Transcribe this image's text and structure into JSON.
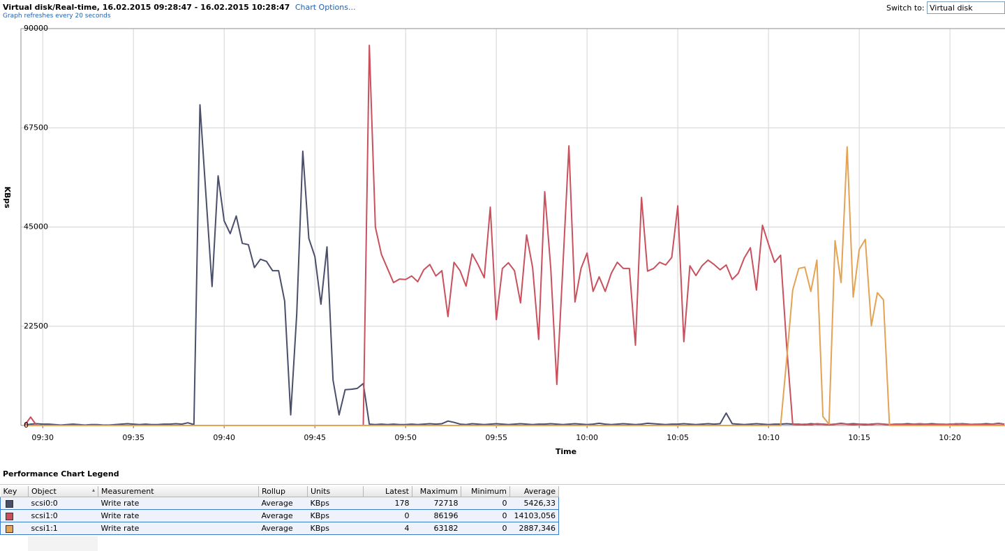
{
  "header": {
    "chart_options": "Chart Options...",
    "switch_label": "Switch to:",
    "switch_value": "Virtual disk"
  },
  "chart_data": {
    "type": "line",
    "title": "Virtual disk/Real-time, 16.02.2015 09:28:47 - 16.02.2015 10:28:47",
    "subtitle": "Graph refreshes every 20 seconds",
    "x_label": "Time",
    "y_label": "KBps",
    "x": [
      1740,
      1760,
      1780,
      1800,
      1820,
      1840,
      1860,
      1880,
      1900,
      1920,
      1940,
      1960,
      1980,
      2000,
      2020,
      2040,
      2060,
      2080,
      2100,
      2120,
      2140,
      2160,
      2180,
      2200,
      2220,
      2240,
      2260,
      2280,
      2300,
      2320,
      2340,
      2360,
      2380,
      2400,
      2420,
      2440,
      2460,
      2480,
      2500,
      2520,
      2540,
      2560,
      2580,
      2600,
      2620,
      2640,
      2660,
      2680,
      2700,
      2720,
      2740,
      2760,
      2780,
      2800,
      2820,
      2840,
      2860,
      2880,
      2900,
      2920,
      2940,
      2960,
      2980,
      3000,
      3020,
      3040,
      3060,
      3080,
      3100,
      3120,
      3140,
      3160,
      3180,
      3200,
      3220,
      3240,
      3260,
      3280,
      3300,
      3320,
      3340,
      3360,
      3380,
      3400,
      3420,
      3440,
      3460,
      3480,
      3500,
      3520,
      3540,
      3560,
      3580,
      3600,
      3620,
      3640,
      3660,
      3680,
      3700,
      3720,
      3740,
      3760,
      3780,
      3800,
      3820,
      3840,
      3860,
      3880,
      3900,
      3920,
      3940,
      3960,
      3980,
      4000,
      4020,
      4040,
      4060,
      4080,
      4100,
      4120,
      4140,
      4160,
      4180,
      4200,
      4220,
      4240,
      4260,
      4280,
      4300,
      4320,
      4340,
      4360,
      4380,
      4400,
      4420,
      4440,
      4460,
      4480,
      4500,
      4520,
      4540,
      4560,
      4580,
      4600,
      4620,
      4640,
      4660,
      4680,
      4700,
      4720,
      4740,
      4760,
      4780,
      4800,
      4820,
      4840,
      4860,
      4880,
      4900,
      4920,
      4940,
      4960,
      4980
    ],
    "xlim": [
      1728,
      4982
    ],
    "xticks": [
      {
        "value": 1800,
        "label": "09:30"
      },
      {
        "value": 2100,
        "label": "09:35"
      },
      {
        "value": 2400,
        "label": "09:40"
      },
      {
        "value": 2700,
        "label": "09:45"
      },
      {
        "value": 3000,
        "label": "09:50"
      },
      {
        "value": 3300,
        "label": "09:55"
      },
      {
        "value": 3600,
        "label": "10:00"
      },
      {
        "value": 3900,
        "label": "10:05"
      },
      {
        "value": 4200,
        "label": "10:10"
      },
      {
        "value": 4500,
        "label": "10:15"
      },
      {
        "value": 4800,
        "label": "10:20"
      }
    ],
    "ylim": [
      0,
      90000
    ],
    "yticks": [
      0,
      22500,
      45000,
      67500,
      90000
    ],
    "grid": true,
    "series": [
      {
        "name": "scsi0:0",
        "color": "#4b4e6b",
        "values": [
          0,
          300,
          400,
          300,
          300,
          200,
          100,
          200,
          300,
          200,
          100,
          200,
          200,
          100,
          100,
          200,
          300,
          400,
          300,
          200,
          300,
          200,
          200,
          300,
          300,
          400,
          300,
          600,
          200,
          72718,
          52000,
          31500,
          56600,
          46400,
          43500,
          47500,
          41300,
          41000,
          35800,
          37700,
          37200,
          35100,
          35100,
          28200,
          2400,
          25300,
          62200,
          42400,
          38300,
          27500,
          40500,
          10300,
          2400,
          8100,
          8200,
          8400,
          9500,
          300,
          200,
          300,
          200,
          300,
          200,
          200,
          300,
          200,
          300,
          400,
          300,
          400,
          1000,
          700,
          300,
          200,
          400,
          300,
          200,
          300,
          400,
          300,
          200,
          300,
          400,
          300,
          200,
          300,
          300,
          400,
          300,
          200,
          300,
          400,
          300,
          200,
          300,
          500,
          300,
          200,
          300,
          400,
          300,
          200,
          300,
          500,
          400,
          300,
          200,
          300,
          300,
          400,
          300,
          200,
          300,
          400,
          300,
          400,
          2800,
          400,
          300,
          200,
          300,
          400,
          300,
          200,
          300,
          300,
          400,
          300,
          300,
          200,
          400,
          300,
          300,
          200,
          300,
          500,
          300,
          400,
          300,
          200,
          300,
          400,
          300,
          200,
          300,
          300,
          400,
          300,
          200,
          300,
          400,
          300,
          200,
          300,
          300,
          400,
          300,
          200,
          300,
          400,
          300,
          500,
          300
        ]
      },
      {
        "name": "scsi1:0",
        "color": "#c9505c",
        "values": [
          0,
          1900,
          0,
          0,
          0,
          0,
          0,
          0,
          0,
          0,
          0,
          0,
          0,
          0,
          0,
          0,
          0,
          0,
          0,
          0,
          0,
          0,
          0,
          0,
          0,
          0,
          0,
          0,
          0,
          0,
          0,
          0,
          0,
          0,
          0,
          0,
          0,
          0,
          0,
          0,
          0,
          0,
          0,
          0,
          0,
          0,
          0,
          0,
          0,
          0,
          0,
          0,
          0,
          0,
          0,
          0,
          0,
          86196,
          45000,
          38800,
          35600,
          32400,
          33200,
          33100,
          33900,
          32600,
          35300,
          36500,
          33900,
          35100,
          24700,
          37000,
          35100,
          31600,
          38900,
          36400,
          33500,
          49500,
          24000,
          35600,
          36900,
          35100,
          27800,
          43200,
          35800,
          19500,
          53000,
          35600,
          9300,
          36000,
          63400,
          28000,
          35600,
          39100,
          30400,
          33700,
          30400,
          34500,
          37000,
          35600,
          35600,
          18200,
          51700,
          35000,
          35600,
          37000,
          36400,
          38100,
          49800,
          19000,
          36200,
          34000,
          36200,
          37500,
          36500,
          35300,
          36400,
          33100,
          34500,
          38000,
          40300,
          30700,
          45400,
          41100,
          37000,
          38600,
          18000,
          300,
          200,
          300,
          200,
          400,
          300,
          200,
          300,
          400,
          300,
          200,
          300,
          300,
          200,
          400,
          300,
          200,
          300,
          300,
          200,
          300,
          400,
          300,
          200,
          300,
          300,
          200,
          400,
          300,
          200,
          300,
          300,
          200,
          300,
          400,
          300
        ]
      },
      {
        "name": "scsi1:1",
        "color": "#e3a353",
        "values": [
          0,
          0,
          0,
          0,
          0,
          0,
          0,
          0,
          0,
          0,
          0,
          0,
          0,
          0,
          0,
          0,
          0,
          0,
          0,
          0,
          0,
          0,
          0,
          0,
          0,
          0,
          0,
          0,
          0,
          0,
          0,
          0,
          0,
          0,
          0,
          0,
          0,
          0,
          0,
          0,
          0,
          0,
          0,
          0,
          0,
          0,
          0,
          0,
          0,
          0,
          0,
          0,
          0,
          0,
          0,
          0,
          0,
          0,
          0,
          0,
          0,
          0,
          0,
          0,
          0,
          0,
          0,
          0,
          0,
          0,
          0,
          0,
          0,
          0,
          0,
          0,
          0,
          0,
          0,
          0,
          0,
          0,
          0,
          0,
          0,
          0,
          0,
          0,
          0,
          0,
          0,
          0,
          0,
          0,
          0,
          0,
          0,
          0,
          0,
          0,
          0,
          0,
          0,
          0,
          0,
          0,
          0,
          0,
          0,
          0,
          0,
          0,
          0,
          0,
          0,
          0,
          0,
          0,
          0,
          0,
          0,
          0,
          0,
          0,
          0,
          0,
          15000,
          30700,
          35600,
          35900,
          30400,
          37500,
          2000,
          300,
          41900,
          32400,
          63182,
          29100,
          39900,
          42200,
          22600,
          30100,
          28500,
          0,
          0,
          0,
          0,
          0,
          0,
          0,
          0,
          0,
          0,
          0,
          0,
          0,
          0,
          0,
          0,
          0,
          0,
          0,
          0
        ]
      }
    ]
  },
  "legend_table": {
    "title": "Performance Chart Legend",
    "columns": [
      "Key",
      "Object",
      "Measurement",
      "Rollup",
      "Units",
      "Latest",
      "Maximum",
      "Minimum",
      "Average"
    ],
    "rows": [
      [
        "Write rate",
        "Average",
        "KBps",
        "178",
        "72718",
        "0",
        "5426,33"
      ],
      [
        "Write rate",
        "Average",
        "KBps",
        "0",
        "86196",
        "0",
        "14103,056"
      ],
      [
        "Write rate",
        "Average",
        "KBps",
        "4",
        "63182",
        "0",
        "2887,346"
      ]
    ]
  }
}
